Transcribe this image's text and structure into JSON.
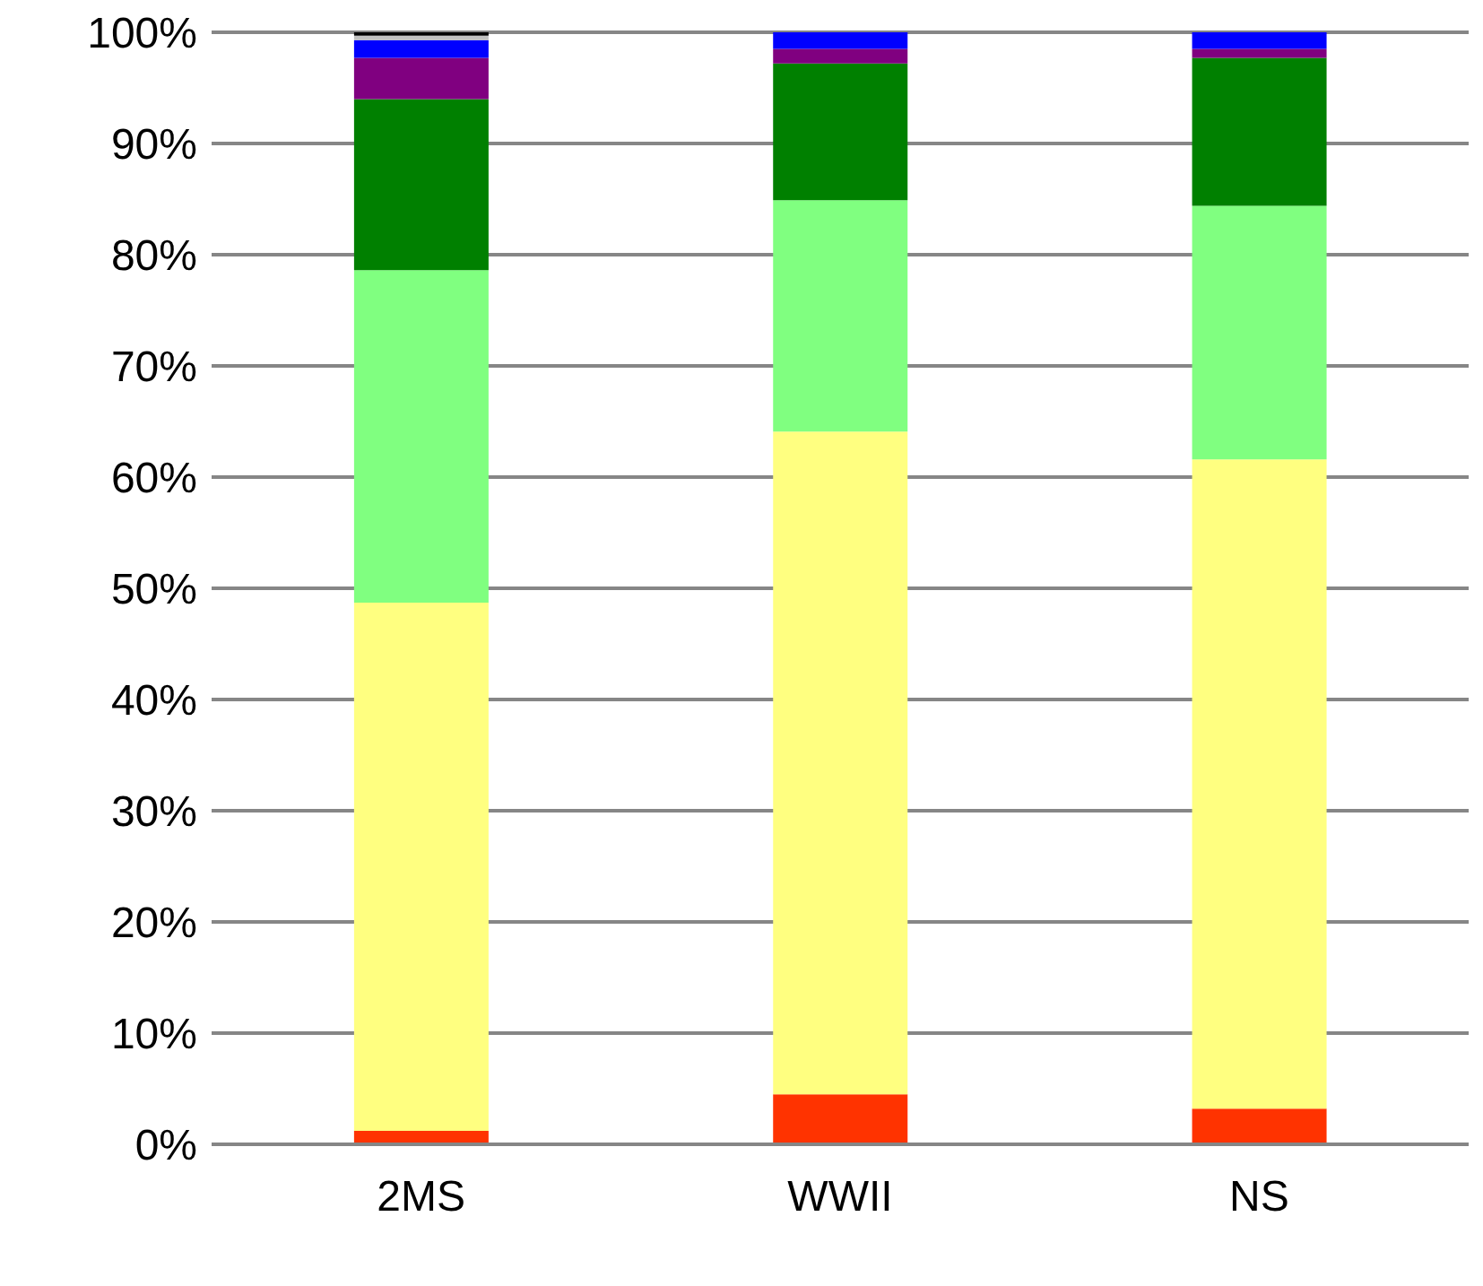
{
  "chart_data": {
    "type": "bar",
    "stacked": true,
    "categories": [
      "2MS",
      "WWII",
      "NS"
    ],
    "series": [
      {
        "color": "#ff3300",
        "values": [
          1.2,
          4.5,
          3.2
        ]
      },
      {
        "color": "#ffff80",
        "values": [
          47.5,
          59.6,
          58.4
        ]
      },
      {
        "color": "#80ff80",
        "values": [
          29.9,
          20.8,
          22.8
        ]
      },
      {
        "color": "#008000",
        "values": [
          15.4,
          12.3,
          13.3
        ]
      },
      {
        "color": "#800080",
        "values": [
          3.7,
          1.3,
          0.8
        ]
      },
      {
        "color": "#0000ff",
        "values": [
          1.6,
          1.5,
          1.5
        ]
      },
      {
        "color": "#c0c0c0",
        "values": [
          0.4,
          0,
          0
        ]
      },
      {
        "color": "#000000",
        "values": [
          0.3,
          0,
          0
        ]
      }
    ],
    "ylim": [
      0,
      100
    ],
    "yticks": [
      {
        "value": 0,
        "label": "0%"
      },
      {
        "value": 10,
        "label": "10%"
      },
      {
        "value": 20,
        "label": "20%"
      },
      {
        "value": 30,
        "label": "30%"
      },
      {
        "value": 40,
        "label": "40%"
      },
      {
        "value": 50,
        "label": "50%"
      },
      {
        "value": 60,
        "label": "60%"
      },
      {
        "value": 70,
        "label": "70%"
      },
      {
        "value": 80,
        "label": "80%"
      },
      {
        "value": 90,
        "label": "90%"
      },
      {
        "value": 100,
        "label": "100%"
      }
    ],
    "grid": "y"
  }
}
